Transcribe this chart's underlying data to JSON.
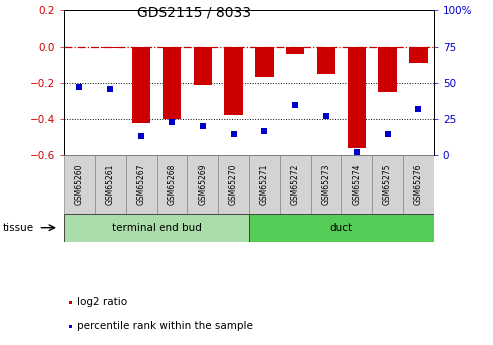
{
  "title": "GDS2115 / 8033",
  "samples": [
    "GSM65260",
    "GSM65261",
    "GSM65267",
    "GSM65268",
    "GSM65269",
    "GSM65270",
    "GSM65271",
    "GSM65272",
    "GSM65273",
    "GSM65274",
    "GSM65275",
    "GSM65276"
  ],
  "log2_ratio": [
    0.0,
    -0.01,
    -0.42,
    -0.4,
    -0.21,
    -0.38,
    -0.17,
    -0.04,
    -0.15,
    -0.56,
    -0.25,
    -0.09
  ],
  "percentile": [
    47,
    46,
    13,
    23,
    20,
    15,
    17,
    35,
    27,
    2,
    15,
    32
  ],
  "bar_color": "#cc0000",
  "dot_color": "#0000cc",
  "tissue_groups": [
    {
      "label": "terminal end bud",
      "start": 0,
      "end": 6,
      "color": "#aaddaa"
    },
    {
      "label": "duct",
      "start": 6,
      "end": 12,
      "color": "#55cc55"
    }
  ],
  "ylim": [
    -0.6,
    0.2
  ],
  "y2lim": [
    0,
    100
  ],
  "yticks": [
    0.2,
    0.0,
    -0.2,
    -0.4,
    -0.6
  ],
  "y2ticks": [
    100,
    75,
    50,
    25,
    0
  ],
  "y2tick_labels": [
    "100%",
    "75",
    "50",
    "25",
    "0"
  ],
  "hline_y": 0.0,
  "dotted_lines": [
    -0.2,
    -0.4
  ],
  "bg_color": "#ffffff",
  "plot_bg": "#ffffff",
  "legend_red_label": "log2 ratio",
  "legend_blue_label": "percentile rank within the sample",
  "label_box_color": "#d3d3d3"
}
